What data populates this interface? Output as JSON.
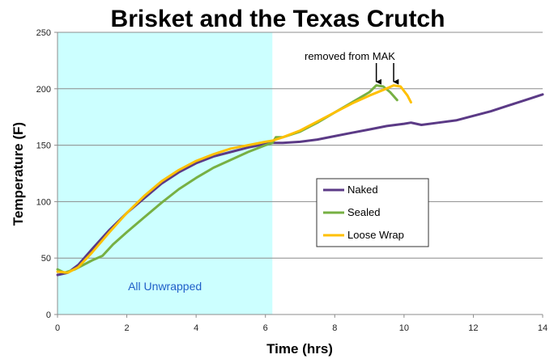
{
  "chart_data": {
    "type": "line",
    "title": "Brisket and the Texas Crutch",
    "xlabel": "Time (hrs)",
    "ylabel": "Temperature (F)",
    "xlim": [
      0,
      14
    ],
    "ylim": [
      0,
      250
    ],
    "xticks": [
      0,
      2,
      4,
      6,
      8,
      10,
      12,
      14
    ],
    "yticks": [
      0,
      50,
      100,
      150,
      200,
      250
    ],
    "grid": "horizontal",
    "legend_position": "center-right",
    "shaded_region": {
      "x": [
        0,
        6.2
      ],
      "label": "All Unwrapped",
      "color": "#ccffff",
      "label_color": "#1f5fc8"
    },
    "annotation": {
      "text": "removed from MAK",
      "arrow_targets": [
        [
          9.2,
          204
        ],
        [
          9.7,
          204
        ]
      ]
    },
    "series": [
      {
        "name": "Naked",
        "color": "#5b3a86",
        "points": [
          [
            0,
            35
          ],
          [
            0.3,
            37
          ],
          [
            0.6,
            44
          ],
          [
            1.0,
            58
          ],
          [
            1.5,
            75
          ],
          [
            2,
            90
          ],
          [
            2.5,
            103
          ],
          [
            3,
            116
          ],
          [
            3.5,
            126
          ],
          [
            4,
            134
          ],
          [
            4.5,
            140
          ],
          [
            5,
            144
          ],
          [
            5.5,
            148
          ],
          [
            6,
            151
          ],
          [
            6.2,
            152
          ],
          [
            6.5,
            152
          ],
          [
            7,
            153
          ],
          [
            7.5,
            155
          ],
          [
            8,
            158
          ],
          [
            8.5,
            161
          ],
          [
            9,
            164
          ],
          [
            9.5,
            167
          ],
          [
            10,
            169
          ],
          [
            10.2,
            170
          ],
          [
            10.5,
            168
          ],
          [
            11,
            170
          ],
          [
            11.5,
            172
          ],
          [
            12,
            176
          ],
          [
            12.5,
            180
          ],
          [
            13,
            185
          ],
          [
            13.5,
            190
          ],
          [
            14,
            195
          ]
        ]
      },
      {
        "name": "Sealed",
        "color": "#77b043",
        "points": [
          [
            0,
            40
          ],
          [
            0.2,
            37
          ],
          [
            0.5,
            40
          ],
          [
            1,
            48
          ],
          [
            1.3,
            52
          ],
          [
            1.6,
            62
          ],
          [
            2,
            73
          ],
          [
            2.5,
            86
          ],
          [
            3,
            99
          ],
          [
            3.5,
            111
          ],
          [
            4,
            121
          ],
          [
            4.5,
            130
          ],
          [
            5,
            137
          ],
          [
            5.5,
            144
          ],
          [
            6,
            150
          ],
          [
            6.2,
            152
          ],
          [
            6.3,
            157
          ],
          [
            6.5,
            157
          ],
          [
            7,
            162
          ],
          [
            7.5,
            170
          ],
          [
            8,
            179
          ],
          [
            8.5,
            188
          ],
          [
            9,
            197
          ],
          [
            9.2,
            203
          ],
          [
            9.4,
            202
          ],
          [
            9.6,
            197
          ],
          [
            9.8,
            190
          ]
        ]
      },
      {
        "name": "Loose Wrap",
        "color": "#ffc000",
        "points": [
          [
            0,
            38
          ],
          [
            0.3,
            37
          ],
          [
            0.6,
            42
          ],
          [
            1,
            55
          ],
          [
            1.5,
            73
          ],
          [
            2,
            90
          ],
          [
            2.5,
            105
          ],
          [
            3,
            118
          ],
          [
            3.5,
            128
          ],
          [
            4,
            136
          ],
          [
            4.5,
            142
          ],
          [
            5,
            147
          ],
          [
            5.5,
            150
          ],
          [
            6,
            153
          ],
          [
            6.2,
            154
          ],
          [
            6.5,
            157
          ],
          [
            7,
            163
          ],
          [
            7.5,
            171
          ],
          [
            8,
            179
          ],
          [
            8.5,
            187
          ],
          [
            9,
            194
          ],
          [
            9.4,
            199
          ],
          [
            9.7,
            203
          ],
          [
            9.9,
            202
          ],
          [
            10.1,
            194
          ],
          [
            10.2,
            188
          ]
        ]
      }
    ]
  }
}
